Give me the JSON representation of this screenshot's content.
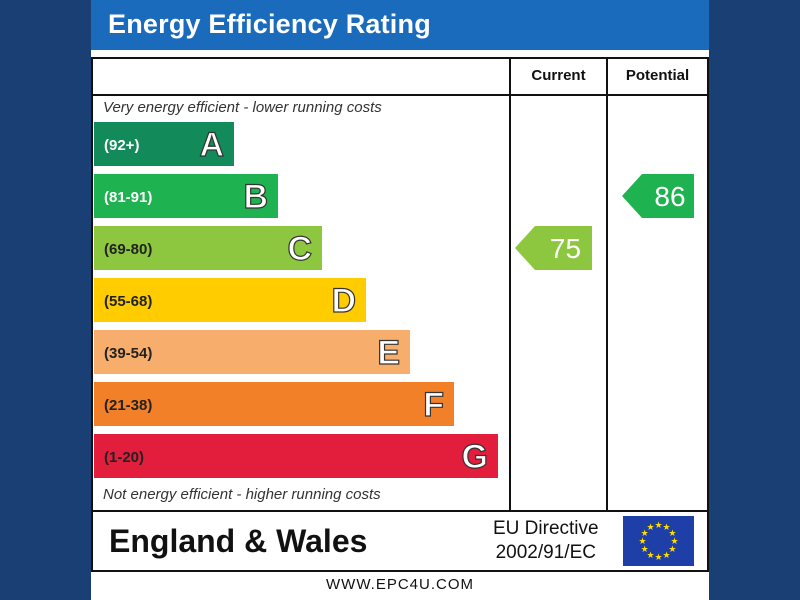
{
  "title": "Energy Efficiency Rating",
  "columns": {
    "current": "Current",
    "potential": "Potential"
  },
  "top_note": "Very energy efficient - lower running costs",
  "bottom_note": "Not energy efficient - higher running costs",
  "footer": {
    "region": "England & Wales",
    "directive_line1": "EU Directive",
    "directive_line2": "2002/91/EC",
    "url": "WWW.EPC4U.COM"
  },
  "chart_data": {
    "type": "bar",
    "title": "Energy Efficiency Rating",
    "categories": [
      "A",
      "B",
      "C",
      "D",
      "E",
      "F",
      "G"
    ],
    "ranges": [
      "(92+)",
      "(81-91)",
      "(69-80)",
      "(55-68)",
      "(39-54)",
      "(21-38)",
      "(1-20)"
    ],
    "colors": [
      "#138a5a",
      "#1fb250",
      "#8dc63f",
      "#ffcc00",
      "#f7ae6c",
      "#f28028",
      "#e31d3c"
    ],
    "current": {
      "value": 75,
      "band": "C",
      "color": "#8dc63f"
    },
    "potential": {
      "value": 86,
      "band": "B",
      "color": "#1fb250"
    }
  }
}
